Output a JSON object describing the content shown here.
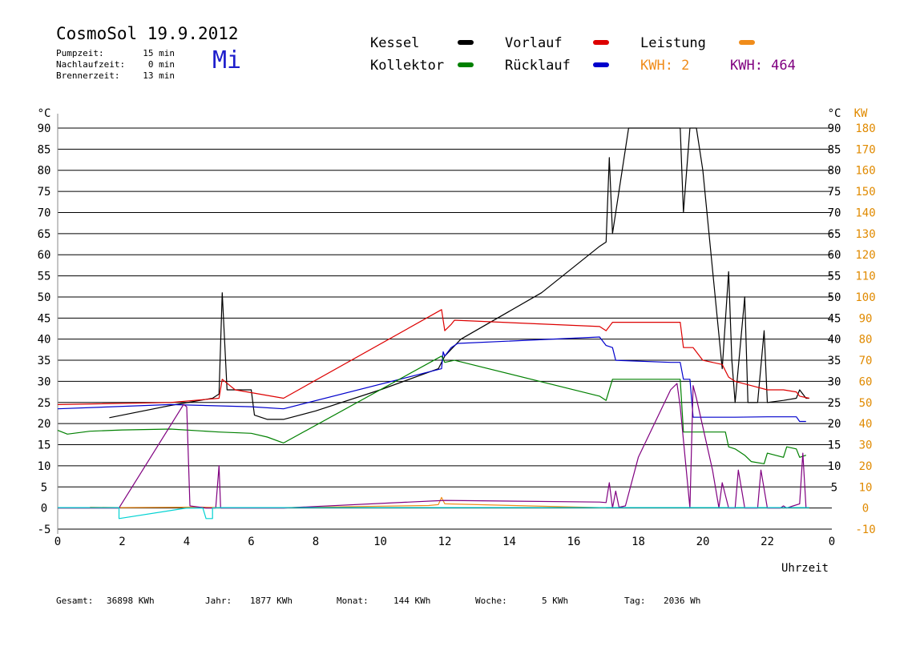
{
  "header": {
    "title": "CosmoSol 19.9.2012",
    "day": "Mi",
    "stats": [
      {
        "label": "Pumpzeit:",
        "value": "15 min"
      },
      {
        "label": "Nachlaufzeit:",
        "value": "0 min"
      },
      {
        "label": "Brennerzeit:",
        "value": "13 min"
      }
    ]
  },
  "legend": {
    "kessel": "Kessel",
    "kollektor": "Kollektor",
    "vorlauf": "Vorlauf",
    "ruecklauf": "Rücklauf",
    "leistung": "Leistung",
    "kwh1": "KWH: 2",
    "kwh2": "KWH: 464"
  },
  "colors": {
    "kessel": "#000000",
    "kollektor": "#008000",
    "vorlauf": "#dd0000",
    "ruecklauf": "#0000cc",
    "leistung": "#f08c1a",
    "kwh2": "#800080",
    "cyan": "#00d2d2",
    "axis_right_kw": "#e08a00"
  },
  "footer": {
    "gesamt_label": "Gesamt:",
    "gesamt_value": "36898 KWh",
    "jahr_label": "Jahr:",
    "jahr_value": "1877 KWh",
    "monat_label": "Monat:",
    "monat_value": "144 KWh",
    "woche_label": "Woche:",
    "woche_value": "5 KWh",
    "tag_label": "Tag:",
    "tag_value": "2036 Wh"
  },
  "chart_data": {
    "type": "line",
    "xlabel": "Uhrzeit",
    "ylabel_left": "°C",
    "ylabel_right": "°C",
    "ylabel_right2": "KW",
    "xlim": [
      0,
      24
    ],
    "ylim": [
      -5,
      90
    ],
    "y2lim": [
      -10,
      180
    ],
    "x_ticks": [
      "0",
      "2",
      "4",
      "6",
      "8",
      "10",
      "12",
      "14",
      "16",
      "18",
      "20",
      "22",
      "0"
    ],
    "y_ticks_left": [
      "90",
      "85",
      "80",
      "75",
      "70",
      "65",
      "60",
      "55",
      "50",
      "45",
      "40",
      "35",
      "30",
      "25",
      "20",
      "15",
      "10",
      "5",
      "0",
      "-5"
    ],
    "y_ticks_right": [
      "90",
      "85",
      "80",
      "75",
      "70",
      "65",
      "60",
      "55",
      "50",
      "45",
      "40",
      "35",
      "30",
      "25",
      "20",
      "15",
      "10",
      "5"
    ],
    "y_ticks_kw": [
      "180",
      "170",
      "160",
      "150",
      "140",
      "130",
      "120",
      "110",
      "100",
      "90",
      "80",
      "70",
      "60",
      "50",
      "40",
      "30",
      "20",
      "10",
      "0",
      "-10"
    ],
    "grid": true,
    "series": [
      {
        "name": "Kessel",
        "key": "kessel",
        "points": [
          [
            1.6,
            21.4
          ],
          [
            3.5,
            24.3
          ],
          [
            4.8,
            26
          ],
          [
            5.0,
            27
          ],
          [
            5.1,
            51
          ],
          [
            5.25,
            28
          ],
          [
            6.0,
            28
          ],
          [
            6.1,
            22
          ],
          [
            6.5,
            21
          ],
          [
            7.0,
            21
          ],
          [
            8.0,
            23
          ],
          [
            10.0,
            28
          ],
          [
            11.8,
            33
          ],
          [
            12.0,
            36
          ],
          [
            12.5,
            40
          ],
          [
            15.0,
            51
          ],
          [
            16.8,
            62
          ],
          [
            17.0,
            63
          ],
          [
            17.1,
            83
          ],
          [
            17.2,
            65
          ],
          [
            17.7,
            90
          ],
          [
            19.0,
            90
          ],
          [
            19.3,
            90
          ],
          [
            19.4,
            70
          ],
          [
            19.6,
            90
          ],
          [
            19.8,
            90
          ],
          [
            20.0,
            80
          ],
          [
            20.6,
            33
          ],
          [
            20.8,
            56
          ],
          [
            20.9,
            35
          ],
          [
            21.0,
            25
          ],
          [
            21.3,
            50
          ],
          [
            21.4,
            25
          ],
          [
            21.7,
            25
          ],
          [
            21.9,
            42
          ],
          [
            22.0,
            25
          ],
          [
            22.5,
            25.5
          ],
          [
            22.9,
            26
          ],
          [
            23.0,
            28
          ],
          [
            23.2,
            26
          ],
          [
            23.3,
            26
          ]
        ]
      },
      {
        "name": "Vorlauf",
        "key": "vorlauf",
        "points": [
          [
            0,
            24.5
          ],
          [
            3.5,
            25
          ],
          [
            5.0,
            26
          ],
          [
            5.1,
            30.5
          ],
          [
            5.5,
            28
          ],
          [
            7.0,
            26
          ],
          [
            11.9,
            47
          ],
          [
            12.0,
            42
          ],
          [
            12.2,
            43.5
          ],
          [
            12.3,
            44.5
          ],
          [
            16.8,
            43
          ],
          [
            17.0,
            42
          ],
          [
            17.2,
            44
          ],
          [
            19.0,
            44
          ],
          [
            19.3,
            44
          ],
          [
            19.4,
            38
          ],
          [
            19.7,
            38
          ],
          [
            20.0,
            35
          ],
          [
            20.6,
            34
          ],
          [
            20.8,
            31
          ],
          [
            21.0,
            30
          ],
          [
            21.5,
            29
          ],
          [
            22.0,
            28
          ],
          [
            22.5,
            28
          ],
          [
            22.9,
            27.5
          ],
          [
            23.0,
            26.5
          ],
          [
            23.3,
            26
          ]
        ]
      },
      {
        "name": "Rücklauf",
        "key": "ruecklauf",
        "points": [
          [
            0,
            23.5
          ],
          [
            3.5,
            24.5
          ],
          [
            6.0,
            24
          ],
          [
            7.0,
            23.5
          ],
          [
            11.9,
            33
          ],
          [
            11.95,
            37
          ],
          [
            12.0,
            36
          ],
          [
            12.2,
            38
          ],
          [
            12.4,
            39
          ],
          [
            16.8,
            40.5
          ],
          [
            17.0,
            38.5
          ],
          [
            17.2,
            38
          ],
          [
            17.3,
            35
          ],
          [
            19.0,
            34.5
          ],
          [
            19.3,
            34.5
          ],
          [
            19.4,
            30.5
          ],
          [
            19.6,
            30.5
          ],
          [
            19.7,
            21.5
          ],
          [
            21.0,
            21.5
          ],
          [
            22.0,
            21.6
          ],
          [
            22.9,
            21.6
          ],
          [
            23.0,
            20.5
          ],
          [
            23.2,
            20.5
          ]
        ]
      },
      {
        "name": "Kollektor",
        "key": "kollektor",
        "points": [
          [
            0,
            18.4
          ],
          [
            0.3,
            17.5
          ],
          [
            1.0,
            18.2
          ],
          [
            2.0,
            18.5
          ],
          [
            3.5,
            18.7
          ],
          [
            5.0,
            18
          ],
          [
            6.0,
            17.7
          ],
          [
            6.5,
            16.8
          ],
          [
            7.0,
            15.4
          ],
          [
            11.9,
            36
          ],
          [
            12.0,
            34.5
          ],
          [
            12.3,
            35
          ],
          [
            16.8,
            26.5
          ],
          [
            17.0,
            25.5
          ],
          [
            17.2,
            30.5
          ],
          [
            19.0,
            30.5
          ],
          [
            19.3,
            30.5
          ],
          [
            19.4,
            18
          ],
          [
            19.7,
            18
          ],
          [
            20.0,
            18
          ],
          [
            20.7,
            18
          ],
          [
            20.8,
            14.5
          ],
          [
            21.0,
            14
          ],
          [
            21.3,
            12.5
          ],
          [
            21.5,
            11
          ],
          [
            21.9,
            10.5
          ],
          [
            22.0,
            13
          ],
          [
            22.5,
            12
          ],
          [
            22.6,
            14.5
          ],
          [
            22.9,
            14
          ],
          [
            23.0,
            12
          ],
          [
            23.2,
            12.5
          ]
        ]
      },
      {
        "name": "Leistung",
        "key": "leistung",
        "points": [
          [
            1.0,
            0.2
          ],
          [
            2.0,
            0.1
          ],
          [
            4.0,
            0.2
          ],
          [
            4.5,
            0.2
          ],
          [
            5.0,
            0.1
          ],
          [
            7.0,
            0.1
          ],
          [
            11.5,
            0.6
          ],
          [
            11.8,
            0.8
          ],
          [
            11.9,
            2.5
          ],
          [
            12.0,
            1.0
          ],
          [
            12.5,
            0.9
          ],
          [
            16.8,
            0.1
          ],
          [
            17.0,
            0.1
          ]
        ]
      },
      {
        "name": "KWH: 464",
        "key": "kwh2",
        "points": [
          [
            0,
            0
          ],
          [
            1.0,
            0
          ],
          [
            1.9,
            0
          ],
          [
            3.9,
            24.5
          ],
          [
            4.0,
            24
          ],
          [
            4.1,
            0.5
          ],
          [
            4.6,
            0
          ],
          [
            4.9,
            0
          ],
          [
            5.0,
            10
          ],
          [
            5.05,
            0
          ],
          [
            7.0,
            0
          ],
          [
            12.0,
            1.8
          ],
          [
            16.8,
            1.4
          ],
          [
            17.0,
            1.3
          ],
          [
            17.1,
            6
          ],
          [
            17.2,
            0
          ],
          [
            17.3,
            4
          ],
          [
            17.4,
            0.2
          ],
          [
            17.6,
            0.5
          ],
          [
            18.0,
            12
          ],
          [
            19.0,
            28
          ],
          [
            19.2,
            29.5
          ],
          [
            19.3,
            24
          ],
          [
            19.6,
            0
          ],
          [
            19.7,
            29
          ],
          [
            19.8,
            26
          ],
          [
            20.3,
            9
          ],
          [
            20.5,
            0
          ],
          [
            20.6,
            6
          ],
          [
            20.8,
            0
          ],
          [
            21.0,
            0
          ],
          [
            21.1,
            9
          ],
          [
            21.3,
            0
          ],
          [
            21.7,
            0
          ],
          [
            21.8,
            9
          ],
          [
            22.0,
            0
          ],
          [
            22.4,
            0
          ],
          [
            22.5,
            0.5
          ],
          [
            22.6,
            0
          ],
          [
            22.8,
            0.5
          ],
          [
            23.0,
            1
          ],
          [
            23.1,
            13
          ],
          [
            23.2,
            0
          ]
        ]
      },
      {
        "name": "",
        "key": "cyan",
        "points": [
          [
            0,
            0.1
          ],
          [
            1.9,
            0.1
          ],
          [
            1.9,
            -2.5
          ],
          [
            4.0,
            0
          ],
          [
            4.5,
            0
          ],
          [
            4.6,
            -2.5
          ],
          [
            4.8,
            -2.5
          ],
          [
            4.8,
            0
          ],
          [
            5.0,
            0.1
          ],
          [
            23.3,
            0.1
          ]
        ]
      }
    ]
  }
}
